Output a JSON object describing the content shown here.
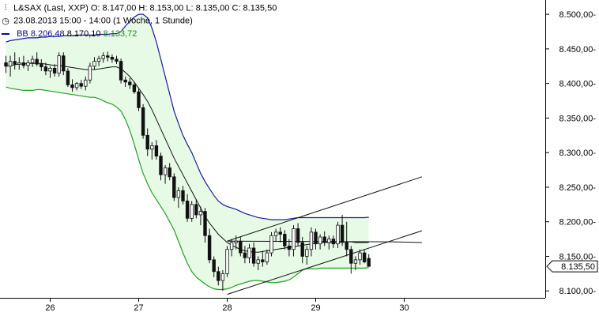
{
  "legend": {
    "icon": "candlestick-icon",
    "line1": "L&SAX (Last, XXP)  O: 8.147,00  H: 8.153,00  L: 8.135,00  C: 8.135,50",
    "clock_icon": "clock-icon",
    "line2": "23.08.2013 15:00 - 14:00 (1 Woche, 1 Stunde)",
    "bb_label": "BB",
    "bb_upper": "8.206,48",
    "bb_mid": "8.170,10",
    "bb_lower": "8.133,72"
  },
  "colors": {
    "upper_band": "#1a1aa0",
    "lower_band": "#22a022",
    "band_fill": "#e6fae6",
    "middle_line": "#111111",
    "candle": "#111111"
  },
  "chart_data": {
    "type": "candlestick",
    "title": "L&SAX (Last, XXP)",
    "ylim": [
      8090,
      8515
    ],
    "y_ticks": [
      8100,
      8150,
      8200,
      8250,
      8300,
      8350,
      8400,
      8450,
      8500
    ],
    "y_tick_labels": [
      "8.100,00-",
      "8.150,00-",
      "8.200,00-",
      "8.250,00-",
      "8.300,00-",
      "8.350,00-",
      "8.400,00-",
      "8.450,00-",
      "8.500,00-"
    ],
    "x_labels": [
      {
        "label": "26",
        "index": 10
      },
      {
        "label": "27",
        "index": 30
      },
      {
        "label": "28",
        "index": 50
      },
      {
        "label": "29",
        "index": 70
      },
      {
        "label": "30",
        "index": 90
      }
    ],
    "last_price_label": "8.135,50",
    "last_price": 8135.5,
    "candles": [
      [
        8430,
        8440,
        8415,
        8425
      ],
      [
        8425,
        8440,
        8410,
        8432
      ],
      [
        8432,
        8445,
        8420,
        8428
      ],
      [
        8428,
        8438,
        8420,
        8430
      ],
      [
        8430,
        8440,
        8422,
        8426
      ],
      [
        8426,
        8434,
        8418,
        8430
      ],
      [
        8430,
        8440,
        8424,
        8435
      ],
      [
        8435,
        8445,
        8425,
        8428
      ],
      [
        8428,
        8435,
        8418,
        8424
      ],
      [
        8424,
        8430,
        8412,
        8418
      ],
      [
        8418,
        8425,
        8408,
        8422
      ],
      [
        8422,
        8428,
        8410,
        8415
      ],
      [
        8415,
        8445,
        8410,
        8440
      ],
      [
        8440,
        8445,
        8412,
        8418
      ],
      [
        8418,
        8422,
        8395,
        8398
      ],
      [
        8398,
        8406,
        8388,
        8394
      ],
      [
        8394,
        8402,
        8390,
        8400
      ],
      [
        8400,
        8405,
        8392,
        8396
      ],
      [
        8396,
        8410,
        8390,
        8405
      ],
      [
        8405,
        8430,
        8400,
        8425
      ],
      [
        8425,
        8438,
        8420,
        8432
      ],
      [
        8432,
        8440,
        8425,
        8436
      ],
      [
        8436,
        8445,
        8430,
        8440
      ],
      [
        8440,
        8446,
        8432,
        8438
      ],
      [
        8438,
        8442,
        8430,
        8435
      ],
      [
        8435,
        8440,
        8428,
        8432
      ],
      [
        8432,
        8436,
        8400,
        8405
      ],
      [
        8405,
        8410,
        8395,
        8402
      ],
      [
        8402,
        8408,
        8392,
        8398
      ],
      [
        8398,
        8402,
        8385,
        8388
      ],
      [
        8388,
        8392,
        8360,
        8365
      ],
      [
        8365,
        8370,
        8320,
        8325
      ],
      [
        8325,
        8335,
        8295,
        8305
      ],
      [
        8305,
        8315,
        8290,
        8310
      ],
      [
        8310,
        8318,
        8290,
        8295
      ],
      [
        8295,
        8300,
        8260,
        8268
      ],
      [
        8268,
        8282,
        8255,
        8278
      ],
      [
        8278,
        8285,
        8260,
        8265
      ],
      [
        8265,
        8270,
        8230,
        8235
      ],
      [
        8235,
        8250,
        8220,
        8245
      ],
      [
        8245,
        8252,
        8225,
        8230
      ],
      [
        8230,
        8240,
        8200,
        8205
      ],
      [
        8205,
        8230,
        8200,
        8225
      ],
      [
        8225,
        8232,
        8205,
        8210
      ],
      [
        8210,
        8222,
        8195,
        8215
      ],
      [
        8215,
        8220,
        8170,
        8180
      ],
      [
        8180,
        8190,
        8140,
        8145
      ],
      [
        8145,
        8150,
        8120,
        8128
      ],
      [
        8128,
        8135,
        8108,
        8115
      ],
      [
        8115,
        8130,
        8100,
        8125
      ],
      [
        8125,
        8165,
        8120,
        8160
      ],
      [
        8160,
        8175,
        8150,
        8170
      ],
      [
        8170,
        8180,
        8160,
        8172
      ],
      [
        8172,
        8178,
        8150,
        8155
      ],
      [
        8155,
        8165,
        8140,
        8148
      ],
      [
        8148,
        8168,
        8140,
        8162
      ],
      [
        8162,
        8170,
        8135,
        8140
      ],
      [
        8140,
        8150,
        8130,
        8145
      ],
      [
        8145,
        8158,
        8135,
        8142
      ],
      [
        8142,
        8160,
        8138,
        8155
      ],
      [
        8155,
        8185,
        8150,
        8180
      ],
      [
        8180,
        8190,
        8172,
        8185
      ],
      [
        8185,
        8192,
        8170,
        8182
      ],
      [
        8182,
        8188,
        8160,
        8165
      ],
      [
        8165,
        8175,
        8150,
        8160
      ],
      [
        8160,
        8195,
        8150,
        8190
      ],
      [
        8190,
        8198,
        8165,
        8170
      ],
      [
        8170,
        8178,
        8140,
        8150
      ],
      [
        8150,
        8165,
        8138,
        8160
      ],
      [
        8160,
        8192,
        8150,
        8185
      ],
      [
        8185,
        8190,
        8160,
        8168
      ],
      [
        8168,
        8182,
        8160,
        8178
      ],
      [
        8178,
        8186,
        8165,
        8170
      ],
      [
        8170,
        8180,
        8160,
        8175
      ],
      [
        8175,
        8180,
        8162,
        8168
      ],
      [
        8168,
        8200,
        8162,
        8195
      ],
      [
        8195,
        8210,
        8165,
        8170
      ],
      [
        8170,
        8200,
        8150,
        8160
      ],
      [
        8160,
        8165,
        8125,
        8140
      ],
      [
        8140,
        8150,
        8130,
        8145
      ],
      [
        8145,
        8160,
        8138,
        8155
      ],
      [
        8155,
        8160,
        8140,
        8142
      ],
      [
        8147,
        8153,
        8135,
        8135.5
      ]
    ],
    "bb_upper": [
      8460,
      8462,
      8463,
      8464,
      8465,
      8466,
      8466,
      8466,
      8467,
      8467,
      8468,
      8468,
      8468,
      8469,
      8469,
      8469,
      8470,
      8470,
      8470,
      8470,
      8470,
      8471,
      8471,
      8471,
      8472,
      8472,
      8475,
      8483,
      8490,
      8496,
      8500,
      8500,
      8495,
      8480,
      8460,
      8435,
      8410,
      8385,
      8360,
      8342,
      8325,
      8312,
      8300,
      8285,
      8270,
      8258,
      8248,
      8238,
      8230,
      8225,
      8222,
      8220,
      8218,
      8215,
      8212,
      8210,
      8208,
      8206,
      8205,
      8204,
      8203,
      8203,
      8203,
      8203,
      8204,
      8205,
      8206,
      8206,
      8206,
      8206,
      8206,
      8206,
      8206,
      8206,
      8206,
      8206,
      8206,
      8206,
      8206,
      8206,
      8206,
      8206,
      8206.5
    ],
    "bb_middle": [
      8425,
      8426,
      8427,
      8428,
      8428,
      8429,
      8429,
      8429,
      8429,
      8428,
      8427,
      8426,
      8426,
      8425,
      8424,
      8423,
      8422,
      8421,
      8420,
      8420,
      8420,
      8421,
      8422,
      8423,
      8424,
      8424,
      8421,
      8416,
      8410,
      8402,
      8393,
      8384,
      8374,
      8362,
      8348,
      8334,
      8320,
      8306,
      8292,
      8280,
      8268,
      8256,
      8244,
      8232,
      8220,
      8208,
      8198,
      8190,
      8182,
      8176,
      8170,
      8166,
      8163,
      8160,
      8158,
      8157,
      8156,
      8156,
      8157,
      8158,
      8159,
      8160,
      8161,
      8162,
      8163,
      8164,
      8165,
      8166,
      8167,
      8168,
      8169,
      8170,
      8170,
      8170,
      8170,
      8170,
      8171,
      8171,
      8171,
      8170,
      8170,
      8170,
      8170.1
    ],
    "bb_lower": [
      8395,
      8393,
      8392,
      8391,
      8390,
      8390,
      8390,
      8391,
      8391,
      8390,
      8389,
      8388,
      8387,
      8386,
      8385,
      8384,
      8383,
      8382,
      8381,
      8380,
      8380,
      8378,
      8375,
      8372,
      8370,
      8366,
      8360,
      8348,
      8332,
      8312,
      8290,
      8270,
      8255,
      8242,
      8232,
      8222,
      8212,
      8200,
      8188,
      8172,
      8155,
      8140,
      8128,
      8120,
      8115,
      8110,
      8106,
      8103,
      8102,
      8102,
      8103,
      8105,
      8108,
      8110,
      8112,
      8114,
      8115,
      8115,
      8114,
      8113,
      8112,
      8112,
      8113,
      8114,
      8116,
      8120,
      8125,
      8130,
      8132,
      8132,
      8132,
      8133,
      8133,
      8133,
      8133,
      8133,
      8133,
      8133,
      8133,
      8133,
      8133,
      8133,
      8133.7
    ],
    "trendlines": [
      {
        "x1": 50,
        "y1": 8172,
        "x2": 94,
        "y2": 8265
      },
      {
        "x1": 50,
        "y1": 8095,
        "x2": 94,
        "y2": 8187
      },
      {
        "x1": 50,
        "y1": 8172,
        "x2": 87,
        "y2": 8171
      },
      {
        "x1": 87,
        "y1": 8171,
        "x2": 94,
        "y2": 8170
      }
    ]
  }
}
